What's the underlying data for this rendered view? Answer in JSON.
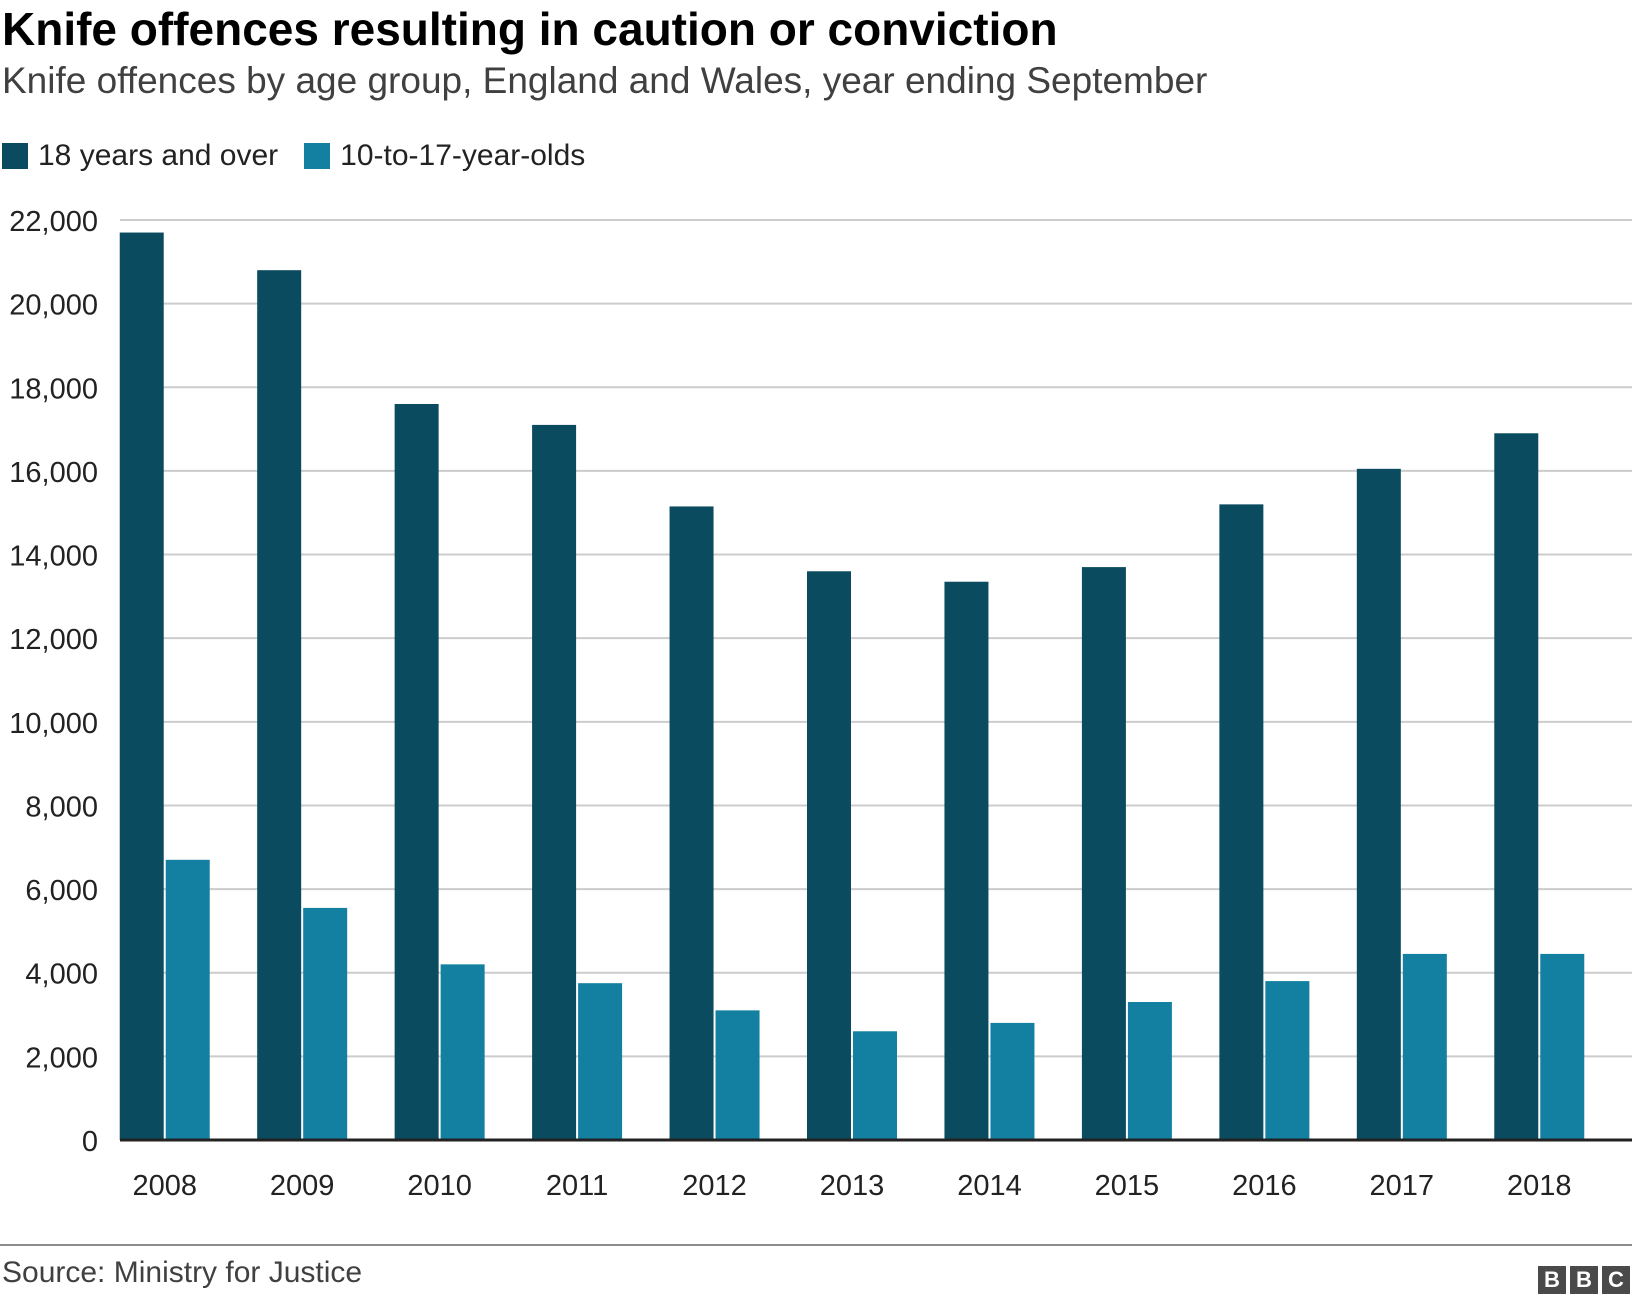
{
  "chart_data": {
    "type": "bar",
    "title": "Knife offences resulting in caution or conviction",
    "subtitle": "Knife offences by age group, England and Wales, year ending September",
    "categories": [
      "2008",
      "2009",
      "2010",
      "2011",
      "2012",
      "2013",
      "2014",
      "2015",
      "2016",
      "2017",
      "2018"
    ],
    "series": [
      {
        "name": "18 years and over",
        "color": "#0b4b5f",
        "values": [
          21700,
          20800,
          17600,
          17100,
          15150,
          13600,
          13350,
          13700,
          15200,
          16050,
          16900
        ]
      },
      {
        "name": "10-to-17-year-olds",
        "color": "#1380a1",
        "values": [
          6700,
          5550,
          4200,
          3750,
          3100,
          2600,
          2800,
          3300,
          3800,
          4450,
          4450
        ]
      }
    ],
    "ylim": [
      0,
      22000
    ],
    "yticks": [
      0,
      2000,
      4000,
      6000,
      8000,
      10000,
      12000,
      14000,
      16000,
      18000,
      20000,
      22000
    ],
    "ytick_labels": [
      "0",
      "2,000",
      "4,000",
      "6,000",
      "8,000",
      "10,000",
      "12,000",
      "14,000",
      "16,000",
      "18,000",
      "20,000",
      "22,000"
    ],
    "grid": true,
    "legend_position": "top-left"
  },
  "footer": {
    "source": "Source: Ministry for Justice",
    "logo": [
      "B",
      "B",
      "C"
    ]
  }
}
